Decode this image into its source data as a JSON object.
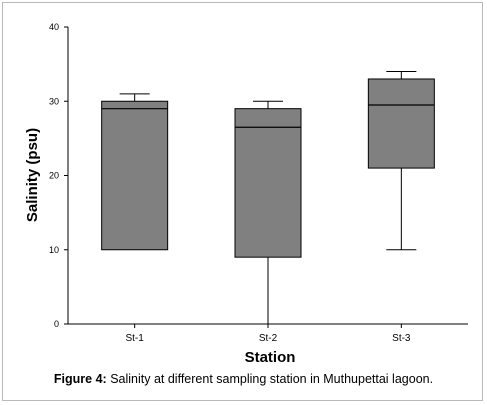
{
  "caption": {
    "lead": "Figure 4:",
    "text": "Salinity at different sampling station in Muthupettai lagoon."
  },
  "chart_data": {
    "type": "box",
    "title": "",
    "xlabel": "Station",
    "ylabel": "Salinity (psu)",
    "ylim": [
      0,
      40
    ],
    "yticks": [
      0,
      10,
      20,
      30,
      40
    ],
    "grid": false,
    "categories": [
      "St-1",
      "St-2",
      "St-3"
    ],
    "boxes": [
      {
        "category": "St-1",
        "min": 10,
        "q1": 10,
        "median": 29,
        "q3": 30,
        "max": 31
      },
      {
        "category": "St-2",
        "min": 0,
        "q1": 9,
        "median": 26.5,
        "q3": 29,
        "max": 30
      },
      {
        "category": "St-3",
        "min": 10,
        "q1": 21,
        "median": 29.5,
        "q3": 33,
        "max": 34
      }
    ],
    "box_color": "#808080",
    "line_color": "#000000"
  }
}
